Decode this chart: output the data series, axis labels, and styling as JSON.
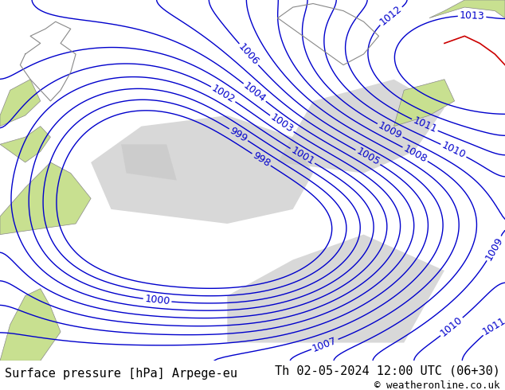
{
  "title_left": "Surface pressure [hPa] Arpege-eu",
  "title_right": "Th 02-05-2024 12:00 UTC (06+30)",
  "copyright": "© weatheronline.co.uk",
  "bg_color": "#d4e8a0",
  "land_color": "#c8e090",
  "sea_color": "#d8d8d8",
  "isobar_color": "#0000cc",
  "isobar_thick_color": "#000000",
  "label_color": "#0000cc",
  "text_color": "#000000",
  "font_size_title": 11,
  "font_size_label": 9,
  "font_size_copyright": 9,
  "pressure_min": 998,
  "pressure_max": 1013,
  "figwidth": 6.34,
  "figheight": 4.9,
  "dpi": 100
}
